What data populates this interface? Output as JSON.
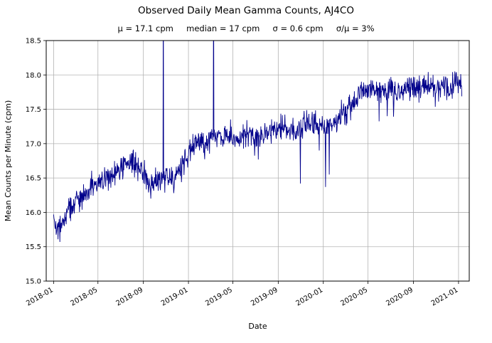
{
  "figure": {
    "title": "Observed Daily Mean Gamma Counts, AJ4CO",
    "stats_line": "μ = 17.1 cpm     median = 17 cpm     σ = 0.6 cpm     σ/μ = 3%"
  },
  "chart_data": {
    "type": "line",
    "title": "Observed Daily Mean Gamma Counts, AJ4CO",
    "subtitle_stats": [
      "μ = 17.1 cpm",
      "median = 17 cpm",
      "σ = 0.6 cpm",
      "σ/μ = 3%"
    ],
    "stats": {
      "mu_cpm": 17.1,
      "median_cpm": 17,
      "sigma_cpm": 0.6,
      "sigma_over_mu_pct": 3
    },
    "xlabel": "Date",
    "ylabel": "Mean Counts per Minute (cpm)",
    "ylim": [
      15.0,
      18.5
    ],
    "y_ticks": [
      15.0,
      15.5,
      16.0,
      16.5,
      17.0,
      17.5,
      18.0,
      18.5
    ],
    "x_ticks": [
      "2018-01",
      "2018-05",
      "2018-09",
      "2019-01",
      "2019-05",
      "2019-09",
      "2020-01",
      "2020-05",
      "2020-09",
      "2021-01"
    ],
    "x_range": [
      "2018-01-01",
      "2021-01-10"
    ],
    "grid": true,
    "legend": "none",
    "line_color": "#00008b",
    "grid_color": "#b3b3b3",
    "noise_sd": 0.09,
    "series": [
      {
        "name": "daily mean gamma counts (cpm)",
        "keypoints": [
          [
            "2018-01-01",
            15.88
          ],
          [
            "2018-01-15",
            15.75
          ],
          [
            "2018-02-01",
            15.95
          ],
          [
            "2018-02-20",
            16.1
          ],
          [
            "2018-03-15",
            16.2
          ],
          [
            "2018-04-10",
            16.32
          ],
          [
            "2018-05-01",
            16.4
          ],
          [
            "2018-05-20",
            16.5
          ],
          [
            "2018-06-10",
            16.55
          ],
          [
            "2018-07-01",
            16.62
          ],
          [
            "2018-07-20",
            16.7
          ],
          [
            "2018-08-10",
            16.72
          ],
          [
            "2018-08-25",
            16.65
          ],
          [
            "2018-09-10",
            16.5
          ],
          [
            "2018-09-25",
            16.38
          ],
          [
            "2018-10-10",
            16.48
          ],
          [
            "2018-10-25",
            16.55
          ],
          [
            "2018-11-10",
            16.5
          ],
          [
            "2018-11-25",
            16.5
          ],
          [
            "2018-12-10",
            16.62
          ],
          [
            "2018-12-25",
            16.8
          ],
          [
            "2019-01-10",
            16.95
          ],
          [
            "2019-01-25",
            17.05
          ],
          [
            "2019-02-15",
            17.0
          ],
          [
            "2019-03-10",
            17.1
          ],
          [
            "2019-04-01",
            17.1
          ],
          [
            "2019-04-20",
            17.15
          ],
          [
            "2019-05-10",
            17.05
          ],
          [
            "2019-06-01",
            17.15
          ],
          [
            "2019-06-20",
            17.1
          ],
          [
            "2019-07-10",
            17.05
          ],
          [
            "2019-08-01",
            17.15
          ],
          [
            "2019-08-20",
            17.2
          ],
          [
            "2019-09-10",
            17.25
          ],
          [
            "2019-10-01",
            17.2
          ],
          [
            "2019-10-20",
            17.15
          ],
          [
            "2019-11-10",
            17.3
          ],
          [
            "2019-12-01",
            17.3
          ],
          [
            "2019-12-20",
            17.25
          ],
          [
            "2020-01-10",
            17.2
          ],
          [
            "2020-02-01",
            17.35
          ],
          [
            "2020-02-20",
            17.45
          ],
          [
            "2020-03-10",
            17.5
          ],
          [
            "2020-04-01",
            17.65
          ],
          [
            "2020-04-15",
            17.8
          ],
          [
            "2020-05-01",
            17.75
          ],
          [
            "2020-05-20",
            17.8
          ],
          [
            "2020-06-10",
            17.75
          ],
          [
            "2020-07-01",
            17.8
          ],
          [
            "2020-07-20",
            17.75
          ],
          [
            "2020-08-10",
            17.8
          ],
          [
            "2020-09-01",
            17.78
          ],
          [
            "2020-09-20",
            17.82
          ],
          [
            "2020-10-10",
            17.85
          ],
          [
            "2020-11-01",
            17.78
          ],
          [
            "2020-11-20",
            17.85
          ],
          [
            "2020-12-10",
            17.8
          ],
          [
            "2020-12-25",
            17.88
          ],
          [
            "2021-01-10",
            17.78
          ]
        ]
      }
    ],
    "spikes": [
      [
        "2018-10-25",
        19.5
      ],
      [
        "2019-03-10",
        19.5
      ]
    ],
    "dips": [
      [
        "2018-01-18",
        15.57
      ],
      [
        "2018-09-21",
        16.2
      ],
      [
        "2018-11-22",
        16.28
      ],
      [
        "2019-07-09",
        16.77
      ],
      [
        "2019-10-31",
        16.42
      ],
      [
        "2019-12-21",
        16.9
      ],
      [
        "2020-01-07",
        16.37
      ],
      [
        "2020-01-17",
        16.55
      ]
    ]
  }
}
